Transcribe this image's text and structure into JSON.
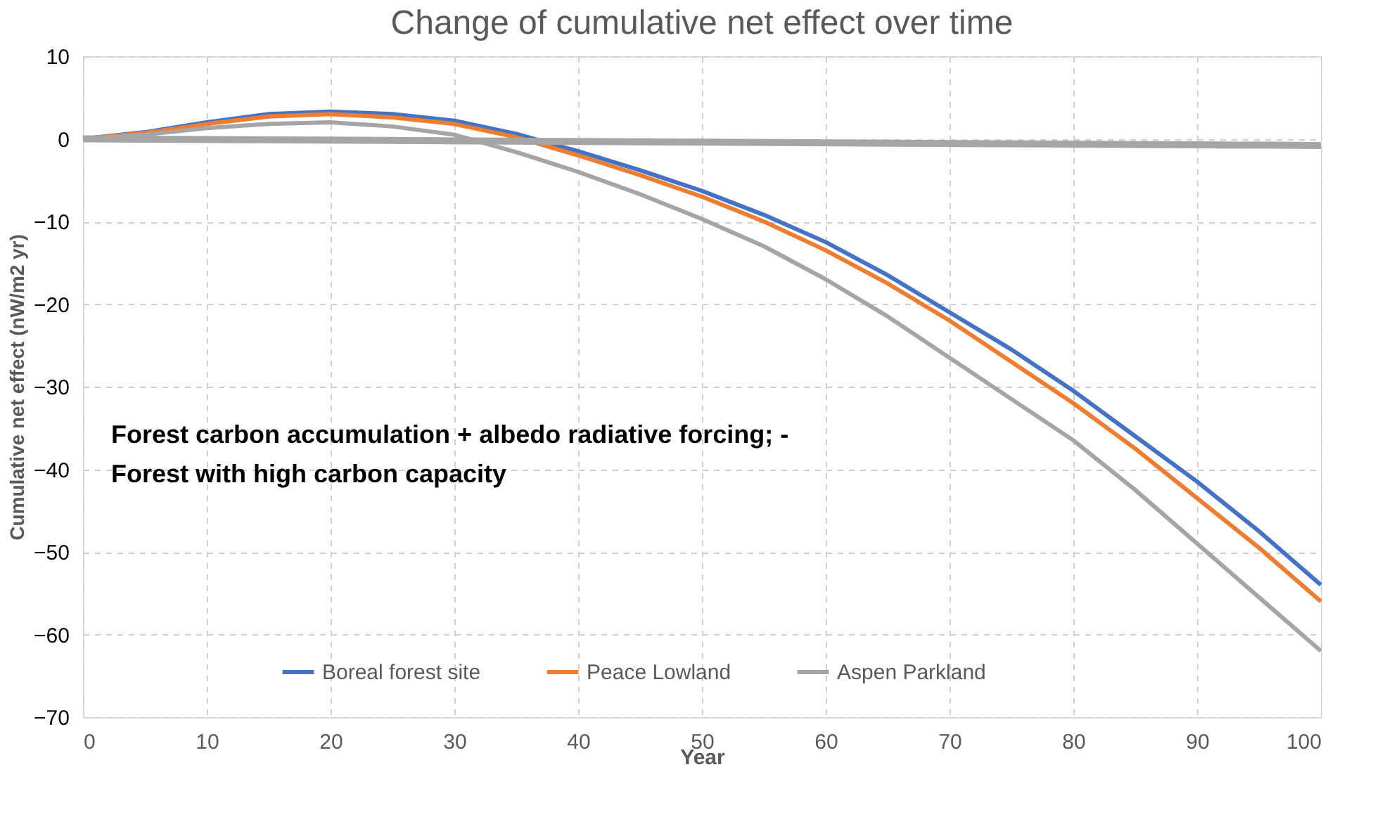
{
  "chart_data": {
    "type": "line",
    "title": "Change of cumulative net effect over time",
    "xlabel": "Year",
    "ylabel": "Cumulative net effect  (nW/m2  yr)",
    "annotations": [
      "Forest carbon accumulation +  albedo radiative forcing; -",
      "Forest with high carbon capacity"
    ],
    "x": [
      0,
      5,
      10,
      15,
      20,
      25,
      30,
      35,
      40,
      45,
      50,
      55,
      60,
      65,
      70,
      75,
      80,
      85,
      90,
      95,
      100
    ],
    "series": [
      {
        "name": "Boreal forest site",
        "color": "#4472c4",
        "values": [
          0,
          0.8,
          2.0,
          3.0,
          3.3,
          3.0,
          2.2,
          0.6,
          -1.5,
          -3.8,
          -6.3,
          -9.2,
          -12.5,
          -16.5,
          -21.0,
          -25.5,
          -30.5,
          -36.0,
          -41.5,
          -47.5,
          -54.0
        ]
      },
      {
        "name": "Peace Lowland",
        "color": "#ed7d31",
        "values": [
          0,
          0.7,
          1.8,
          2.7,
          3.0,
          2.6,
          1.8,
          0.2,
          -2.0,
          -4.4,
          -7.0,
          -10.0,
          -13.5,
          -17.5,
          -22.0,
          -27.0,
          -32.0,
          -37.5,
          -43.5,
          -49.5,
          -56.0
        ]
      },
      {
        "name": "Aspen Parkland",
        "color": "#a5a5a5",
        "values": [
          0,
          0.5,
          1.3,
          1.8,
          2.0,
          1.5,
          0.5,
          -1.6,
          -4.0,
          -6.7,
          -9.7,
          -13.0,
          -17.0,
          -21.5,
          -26.5,
          -31.5,
          -36.5,
          -42.5,
          -49.0,
          -55.5,
          -62.0
        ]
      },
      {
        "color": "#a5a5a5",
        "x": [
          0,
          100
        ],
        "values": [
          0,
          -0.8
        ]
      }
    ],
    "xlim": [
      0,
      100
    ],
    "xticks": [
      0,
      10,
      20,
      30,
      40,
      50,
      60,
      70,
      80,
      90,
      100
    ],
    "ylim": [
      -70,
      10
    ],
    "yticks": [
      -70,
      -60,
      -50,
      -40,
      -30,
      -20,
      -10,
      0,
      10
    ],
    "grid": true,
    "legend": "bottom",
    "marker": "none",
    "line_style": "solid"
  }
}
